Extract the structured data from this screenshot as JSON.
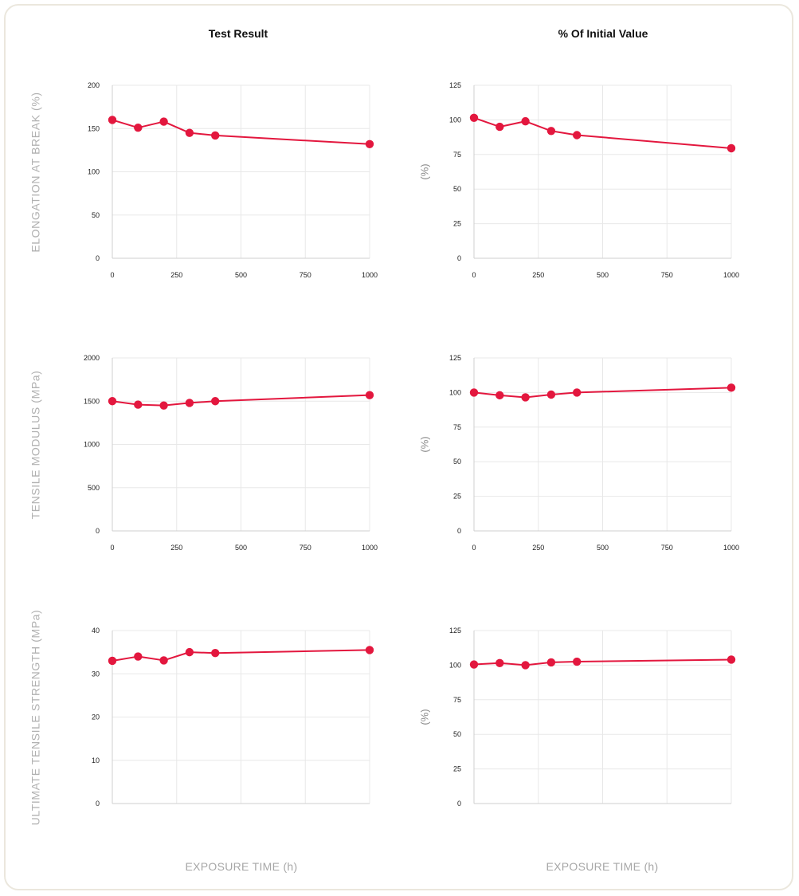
{
  "headers": {
    "left": "Test Result",
    "right": "% Of Initial Value"
  },
  "footer": {
    "left_xlabel": "EXPOSURE TIME (h)",
    "right_xlabel": "EXPOSURE TIME (h)"
  },
  "colors": {
    "series": "#e3173e",
    "grid": "#e8e8e8",
    "axis": "#cfcfcf"
  },
  "chart_data": [
    {
      "type": "line",
      "ylabel": "ELONGATION AT BREAK (%)",
      "xlabel": "",
      "x": [
        0,
        100,
        200,
        300,
        400,
        1000
      ],
      "series": [
        {
          "values": [
            160,
            151,
            158,
            145,
            142,
            132
          ]
        }
      ],
      "xticks": [
        0,
        250,
        500,
        750,
        1000
      ],
      "yticks": [
        0,
        50,
        100,
        150,
        200
      ],
      "xlim": [
        0,
        1000
      ],
      "ylim": [
        0,
        200
      ],
      "grid": true
    },
    {
      "type": "line",
      "ylabel": "(%)",
      "xlabel": "",
      "x": [
        0,
        100,
        200,
        300,
        400,
        1000
      ],
      "series": [
        {
          "values": [
            101.5,
            95,
            99,
            92,
            89,
            79.5
          ]
        }
      ],
      "xticks": [
        0,
        250,
        500,
        750,
        1000
      ],
      "yticks": [
        0,
        25,
        50,
        75,
        100,
        125
      ],
      "xlim": [
        0,
        1000
      ],
      "ylim": [
        0,
        125
      ],
      "grid": true
    },
    {
      "type": "line",
      "ylabel": "TENSILE MODULUS (MPa)",
      "xlabel": "",
      "x": [
        0,
        100,
        200,
        300,
        400,
        1000
      ],
      "series": [
        {
          "values": [
            1500,
            1460,
            1450,
            1480,
            1500,
            1570
          ]
        }
      ],
      "xticks": [
        0,
        250,
        500,
        750,
        1000
      ],
      "yticks": [
        0,
        500,
        1000,
        1500,
        2000
      ],
      "xlim": [
        0,
        1000
      ],
      "ylim": [
        0,
        2000
      ],
      "grid": true
    },
    {
      "type": "line",
      "ylabel": "(%)",
      "xlabel": "",
      "x": [
        0,
        100,
        200,
        300,
        400,
        1000
      ],
      "series": [
        {
          "values": [
            100,
            98,
            96.5,
            98.5,
            100,
            103.5
          ]
        }
      ],
      "xticks": [
        0,
        250,
        500,
        750,
        1000
      ],
      "yticks": [
        0,
        25,
        50,
        75,
        100,
        125
      ],
      "xlim": [
        0,
        1000
      ],
      "ylim": [
        0,
        125
      ],
      "grid": true
    },
    {
      "type": "line",
      "ylabel": "ULTIMATE TENSILE STRENGTH (MPa)",
      "xlabel": "",
      "x": [
        0,
        100,
        200,
        300,
        400,
        1000
      ],
      "series": [
        {
          "values": [
            33,
            34,
            33.1,
            35,
            34.8,
            35.5
          ]
        }
      ],
      "xticks": [],
      "yticks": [
        0,
        10,
        20,
        30,
        40
      ],
      "xlim": [
        0,
        1000
      ],
      "ylim": [
        0,
        40
      ],
      "grid": true
    },
    {
      "type": "line",
      "ylabel": "(%)",
      "xlabel": "",
      "x": [
        0,
        100,
        200,
        300,
        400,
        1000
      ],
      "series": [
        {
          "values": [
            100.5,
            101.5,
            100,
            102,
            102.5,
            104
          ]
        }
      ],
      "xticks": [],
      "yticks": [
        0,
        25,
        50,
        75,
        100,
        125
      ],
      "xlim": [
        0,
        1000
      ],
      "ylim": [
        0,
        125
      ],
      "grid": true
    }
  ]
}
